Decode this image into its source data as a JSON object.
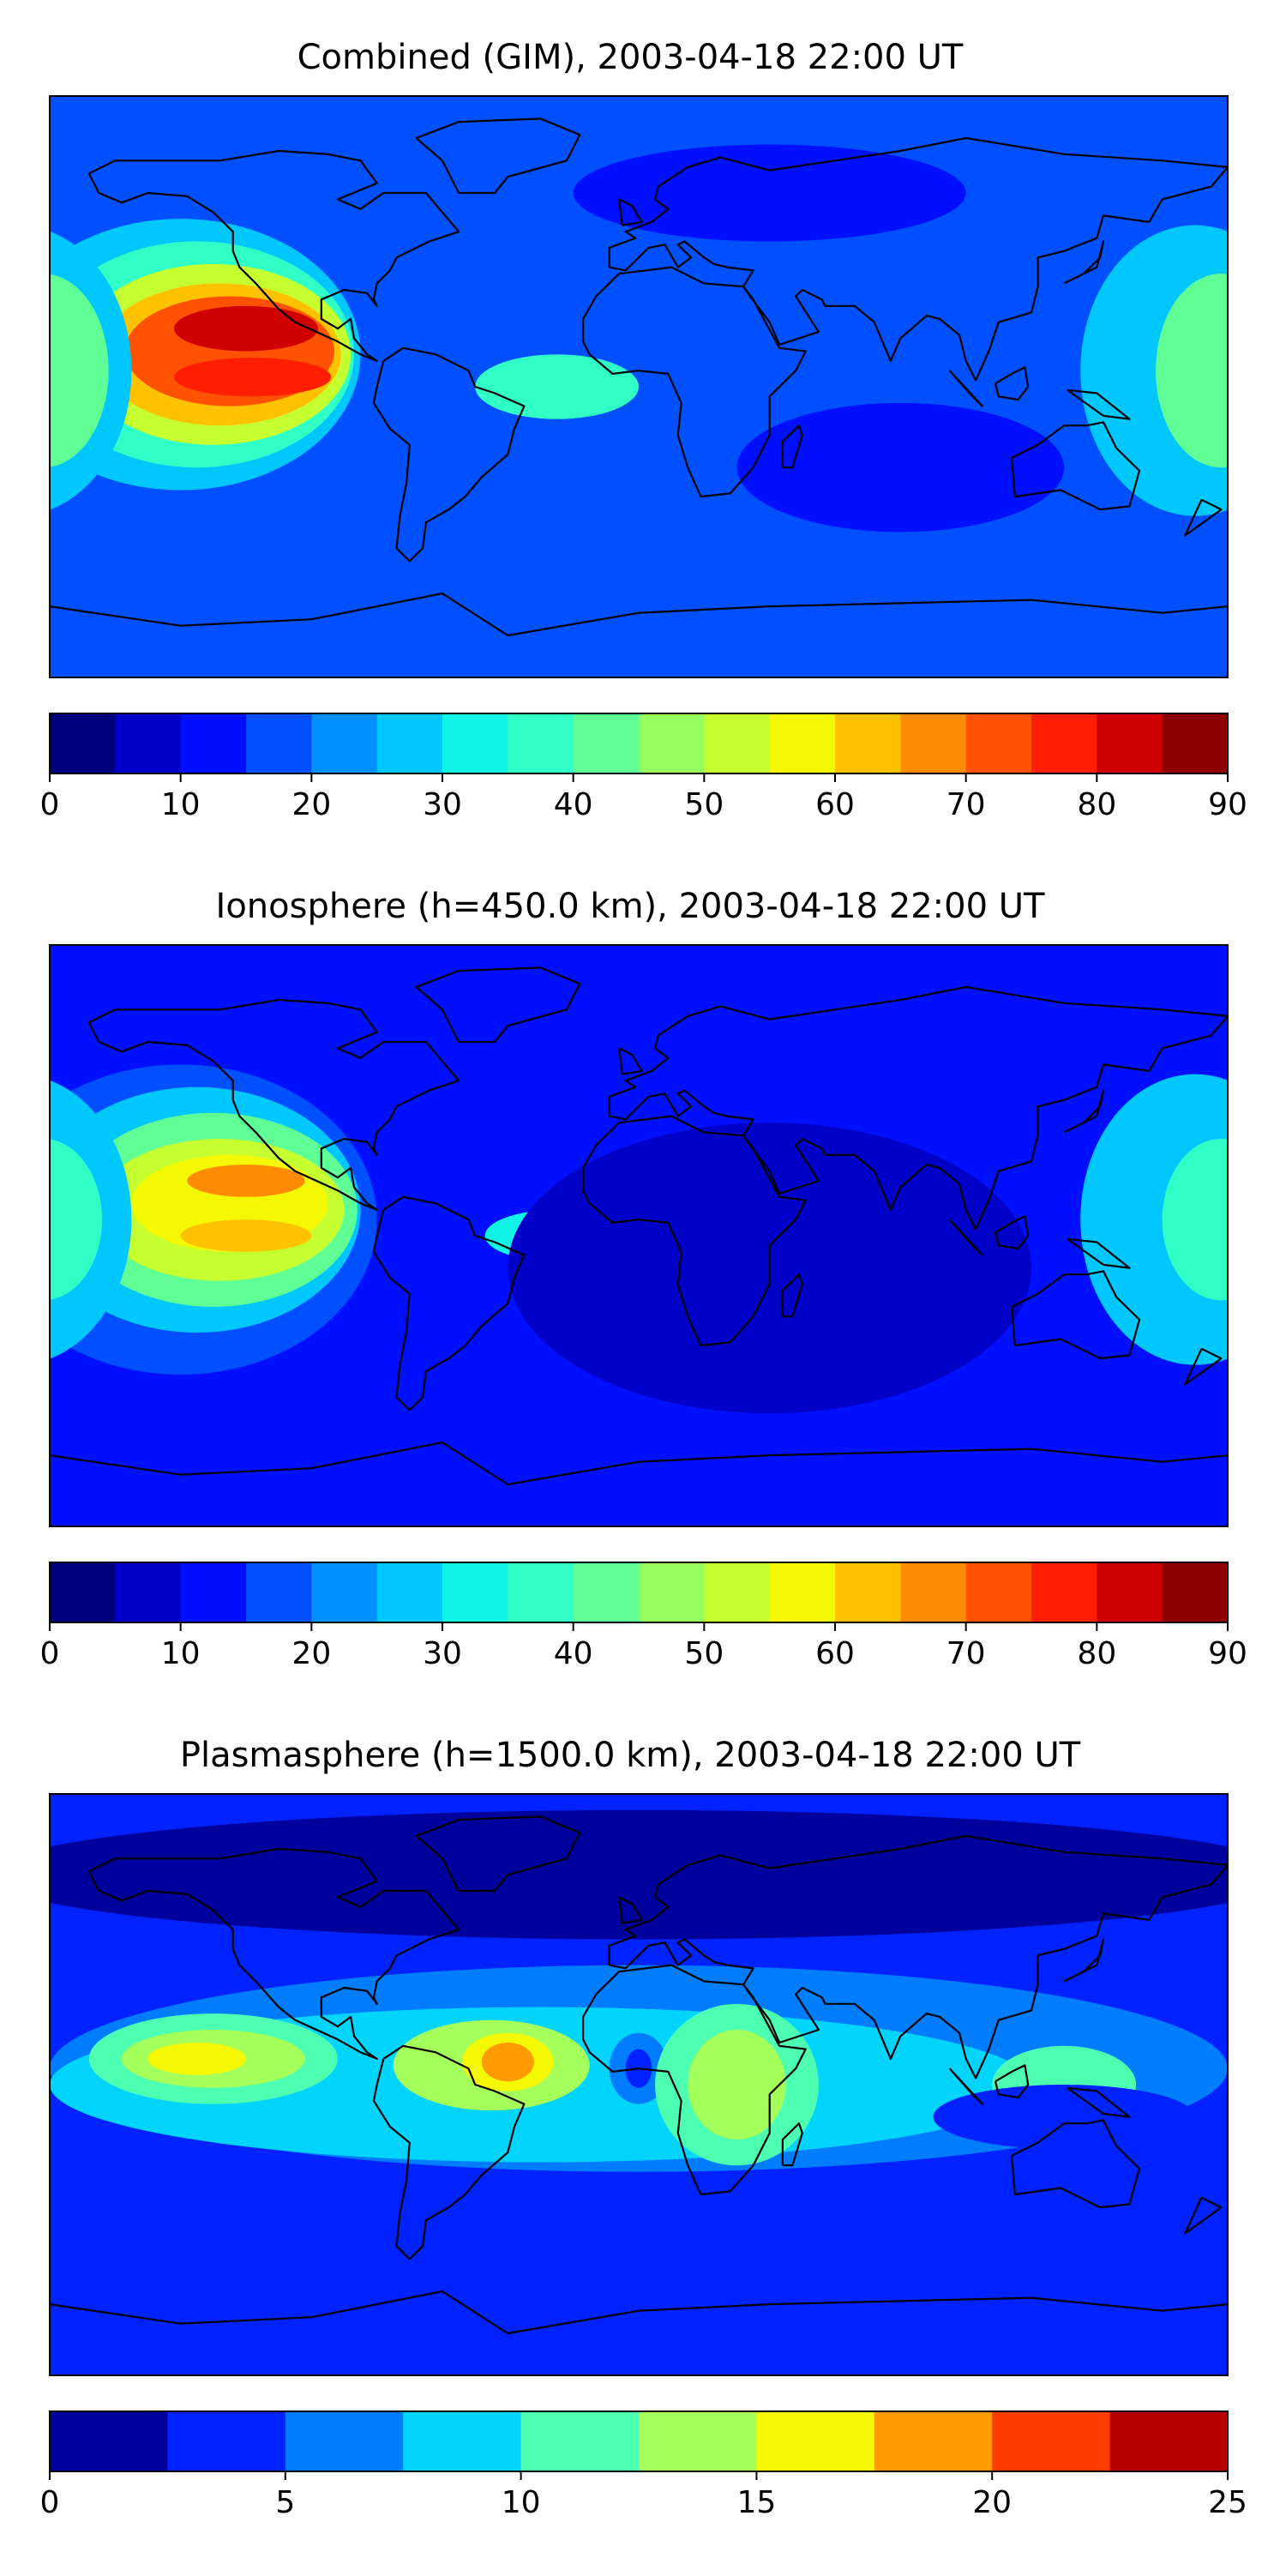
{
  "chart_data": [
    {
      "type": "heatmap",
      "title": "Combined (GIM), 2003-04-18 22:00 UT",
      "xlabel": "",
      "ylabel": "",
      "colorbar": {
        "ticks": [
          "0",
          "10",
          "20",
          "30",
          "40",
          "50",
          "60",
          "70",
          "80",
          "90"
        ],
        "range": [
          0,
          90
        ],
        "levels": 18,
        "colors": [
          "#00007f",
          "#0000c8",
          "#0010ff",
          "#0050ff",
          "#0090ff",
          "#00c8ff",
          "#10f4e8",
          "#30ffc6",
          "#60ff96",
          "#96ff60",
          "#c6ff30",
          "#f4f802",
          "#ffc200",
          "#ff8c00",
          "#ff5200",
          "#ff1e00",
          "#d00000",
          "#8f0000"
        ]
      },
      "background_level": 3,
      "features": [
        {
          "lon": -140,
          "lat": 10,
          "rx": 55,
          "ry": 42,
          "level": 5
        },
        {
          "lon": -135,
          "lat": 10,
          "rx": 48,
          "ry": 35,
          "level": 7
        },
        {
          "lon": -130,
          "lat": 10,
          "rx": 42,
          "ry": 28,
          "level": 10
        },
        {
          "lon": -128,
          "lat": 10,
          "rx": 37,
          "ry": 22,
          "level": 12
        },
        {
          "lon": -125,
          "lat": 11,
          "rx": 32,
          "ry": 17,
          "level": 14
        },
        {
          "lon": -120,
          "lat": 18,
          "rx": 22,
          "ry": 7,
          "level": 16
        },
        {
          "lon": -118,
          "lat": 3,
          "rx": 24,
          "ry": 6,
          "level": 15
        },
        {
          "lon": -25,
          "lat": 0,
          "rx": 25,
          "ry": 10,
          "level": 7
        },
        {
          "lon": 170,
          "lat": 5,
          "rx": 35,
          "ry": 45,
          "level": 5
        },
        {
          "lon": 178,
          "lat": 5,
          "rx": 20,
          "ry": 30,
          "level": 8
        },
        {
          "lon": 80,
          "lat": -25,
          "rx": 50,
          "ry": 20,
          "level": 2
        },
        {
          "lon": 40,
          "lat": 60,
          "rx": 60,
          "ry": 15,
          "level": 2
        }
      ]
    },
    {
      "type": "heatmap",
      "title": "Ionosphere  (h=450.0 km), 2003-04-18 22:00 UT",
      "xlabel": "",
      "ylabel": "",
      "colorbar": {
        "ticks": [
          "0",
          "10",
          "20",
          "30",
          "40",
          "50",
          "60",
          "70",
          "80",
          "90"
        ],
        "range": [
          0,
          90
        ],
        "levels": 18,
        "colors": [
          "#00007f",
          "#0000c8",
          "#0010ff",
          "#0050ff",
          "#0090ff",
          "#00c8ff",
          "#10f4e8",
          "#30ffc6",
          "#60ff96",
          "#96ff60",
          "#c6ff30",
          "#f4f802",
          "#ffc200",
          "#ff8c00",
          "#ff5200",
          "#ff1e00",
          "#d00000",
          "#8f0000"
        ]
      },
      "background_level": 2,
      "features": [
        {
          "lon": -140,
          "lat": 5,
          "rx": 60,
          "ry": 48,
          "level": 3
        },
        {
          "lon": -135,
          "lat": 8,
          "rx": 50,
          "ry": 38,
          "level": 5
        },
        {
          "lon": -130,
          "lat": 8,
          "rx": 44,
          "ry": 30,
          "level": 8
        },
        {
          "lon": -128,
          "lat": 8,
          "rx": 38,
          "ry": 22,
          "level": 10
        },
        {
          "lon": -125,
          "lat": 10,
          "rx": 30,
          "ry": 15,
          "level": 11
        },
        {
          "lon": -120,
          "lat": 17,
          "rx": 18,
          "ry": 5,
          "level": 13
        },
        {
          "lon": -120,
          "lat": 0,
          "rx": 20,
          "ry": 5,
          "level": 12
        },
        {
          "lon": -25,
          "lat": 0,
          "rx": 22,
          "ry": 8,
          "level": 6
        },
        {
          "lon": 170,
          "lat": 5,
          "rx": 35,
          "ry": 45,
          "level": 5
        },
        {
          "lon": 178,
          "lat": 5,
          "rx": 18,
          "ry": 25,
          "level": 7
        },
        {
          "lon": 40,
          "lat": -10,
          "rx": 80,
          "ry": 45,
          "level": 1
        }
      ]
    },
    {
      "type": "heatmap",
      "title": "Plasmasphere (h=1500.0 km), 2003-04-18 22:00 UT",
      "xlabel": "",
      "ylabel": "",
      "colorbar": {
        "ticks": [
          "0",
          "5",
          "10",
          "15",
          "20",
          "25"
        ],
        "range": [
          0,
          25
        ],
        "levels": 10,
        "colors": [
          "#00009c",
          "#0022ff",
          "#007dff",
          "#00d4ff",
          "#4dffb1",
          "#a4ff5a",
          "#f4f802",
          "#ff9a00",
          "#ff3c00",
          "#b90000"
        ]
      },
      "background_level": 1,
      "features": [
        {
          "lon": 0,
          "lat": 65,
          "rx": 200,
          "ry": 20,
          "level": 0
        },
        {
          "lon": 0,
          "lat": 5,
          "rx": 180,
          "ry": 32,
          "level": 2
        },
        {
          "lon": -30,
          "lat": 0,
          "rx": 150,
          "ry": 24,
          "level": 3
        },
        {
          "lon": -130,
          "lat": 8,
          "rx": 38,
          "ry": 14,
          "level": 4
        },
        {
          "lon": -130,
          "lat": 8,
          "rx": 28,
          "ry": 9,
          "level": 5
        },
        {
          "lon": -135,
          "lat": 8,
          "rx": 15,
          "ry": 5,
          "level": 6
        },
        {
          "lon": -45,
          "lat": 6,
          "rx": 30,
          "ry": 14,
          "level": 5
        },
        {
          "lon": -40,
          "lat": 7,
          "rx": 14,
          "ry": 9,
          "level": 6
        },
        {
          "lon": -40,
          "lat": 7,
          "rx": 8,
          "ry": 6,
          "level": 7
        },
        {
          "lon": 0,
          "lat": 5,
          "rx": 9,
          "ry": 11,
          "level": 2
        },
        {
          "lon": 0,
          "lat": 5,
          "rx": 4,
          "ry": 6,
          "level": 1
        },
        {
          "lon": 30,
          "lat": 0,
          "rx": 25,
          "ry": 25,
          "level": 4
        },
        {
          "lon": 30,
          "lat": 0,
          "rx": 15,
          "ry": 17,
          "level": 5
        },
        {
          "lon": 130,
          "lat": 0,
          "rx": 22,
          "ry": 12,
          "level": 4
        },
        {
          "lon": -30,
          "lat": -42,
          "rx": 110,
          "ry": 8,
          "level": 1
        },
        {
          "lon": 130,
          "lat": -10,
          "rx": 40,
          "ry": 10,
          "level": 1
        }
      ]
    }
  ],
  "layout": {
    "panels": [
      {
        "title_bind": "chart_data.0.title"
      },
      {
        "title_bind": "chart_data.1.title"
      },
      {
        "title_bind": "chart_data.2.title"
      }
    ]
  }
}
